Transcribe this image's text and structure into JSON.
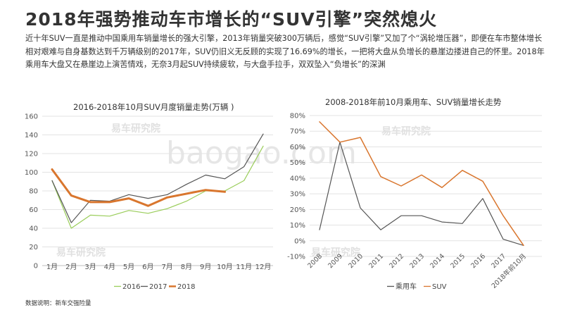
{
  "header": {
    "title": "2018年强势推动车市增长的“SUV引擎”突然熄火",
    "intro": "近十年SUV一直是推动中国乘用车销量增长的强大引擎，2013年销量突破300万辆后，感觉“SUV引擎”又加了个“涡轮增压器”，即便在车市整体增长相对艰难与自身基数达到千万辆级别的2017年，SUV仍旧义无反顾的实现了16.69%的增长，一把将大盘从负增长的悬崖边搂进自己的怀里。2018年乘用车大盘又在悬崖边上演苦情戏，无奈3月起SUV持续疲软，与大盘手拉手，双双坠入“负增长”的深渊"
  },
  "footer": {
    "source": "数据说明：新车交强险量"
  },
  "watermarks": {
    "logo_text": "易车研究院",
    "site": "baogao.com"
  },
  "chart_data": [
    {
      "type": "line",
      "title": "2016-2018年10月SUV月度销量走势(万辆 )",
      "categories": [
        "1月",
        "2月",
        "3月",
        "4月",
        "5月",
        "6月",
        "7月",
        "8月",
        "9月",
        "10月",
        "11月",
        "12月"
      ],
      "ylim": [
        0,
        160
      ],
      "yticks": [
        "0",
        "20",
        "40",
        "60",
        "80",
        "100",
        "120",
        "140",
        "160"
      ],
      "grid": true,
      "legend_position": "bottom",
      "series": [
        {
          "name": "2016",
          "color": "#9acd5a",
          "width": 1.2,
          "values": [
            91,
            40,
            54,
            53,
            59,
            56,
            61,
            69,
            80,
            80,
            91,
            128
          ]
        },
        {
          "name": "2017",
          "color": "#555555",
          "width": 1.2,
          "values": [
            91,
            46,
            70,
            69,
            76,
            72,
            76,
            87,
            97,
            93,
            106,
            141
          ]
        },
        {
          "name": "2018",
          "color": "#d9762e",
          "width": 3,
          "values": [
            103,
            75,
            68,
            68,
            72,
            64,
            73,
            77,
            81,
            79,
            null,
            null
          ]
        }
      ]
    },
    {
      "type": "line",
      "title": "2008-2018年前10月乘用车、SUV销量增长走势",
      "categories": [
        "2008",
        "2009",
        "2010",
        "2011",
        "2012",
        "2013",
        "2014",
        "2015",
        "2016",
        "2017",
        "2018年前10月"
      ],
      "ylim": [
        -10,
        80
      ],
      "yticks": [
        "-10%",
        "0%",
        "10%",
        "20%",
        "30%",
        "40%",
        "50%",
        "60%",
        "70%",
        "80%"
      ],
      "grid": true,
      "legend_position": "bottom",
      "series": [
        {
          "name": "乘用车",
          "color": "#555555",
          "width": 1.2,
          "values": [
            7,
            63,
            21,
            7,
            16,
            16,
            12,
            11,
            27,
            1,
            -3
          ]
        },
        {
          "name": "SUV",
          "color": "#d9762e",
          "width": 1.5,
          "values": [
            76,
            63,
            66,
            41,
            35,
            42,
            34,
            45,
            38,
            16,
            -3
          ]
        }
      ]
    }
  ]
}
